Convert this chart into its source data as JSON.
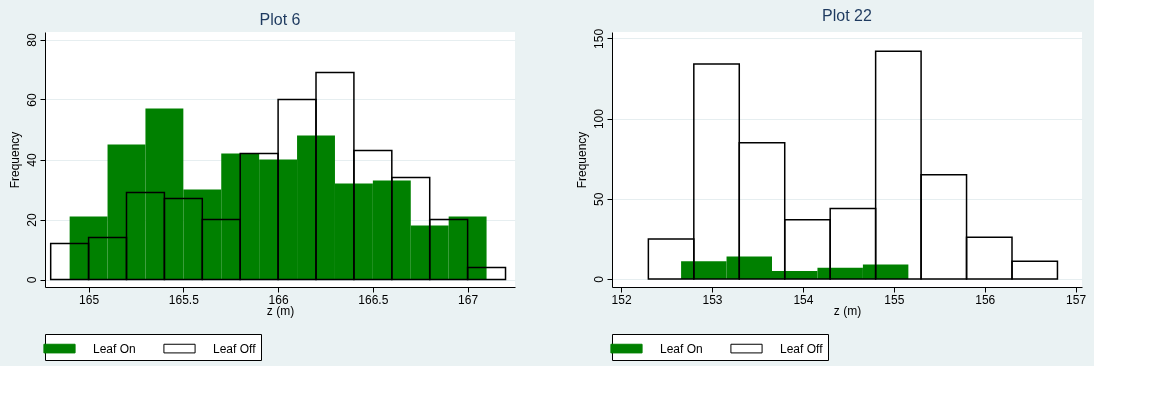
{
  "chart_data": [
    {
      "type": "bar",
      "title": "Plot 6",
      "xlabel": "z (m)",
      "ylabel": "Frequency",
      "xlim": [
        164.77,
        167.25
      ],
      "xticks": [
        165,
        165.5,
        166,
        166.5,
        167
      ],
      "ylim": [
        -2.5,
        82.5
      ],
      "yticks": [
        0,
        20,
        40,
        60,
        80
      ],
      "grid": "y",
      "legend": "bottom",
      "series": [
        {
          "name": "Leaf On",
          "color": "#008000",
          "x": [
            165.0,
            165.2,
            165.4,
            165.6,
            165.8,
            166.0,
            166.2,
            166.4,
            166.6,
            166.8,
            167.0
          ],
          "values": [
            21,
            45,
            57,
            30,
            42,
            40,
            48,
            32,
            33,
            18,
            21
          ]
        },
        {
          "name": "Leaf Off",
          "color": "#000000",
          "x": [
            164.9,
            165.1,
            165.3,
            165.5,
            165.7,
            165.9,
            166.1,
            166.3,
            166.5,
            166.7,
            166.9,
            167.1
          ],
          "values": [
            12,
            14,
            29,
            27,
            20,
            42,
            60,
            69,
            43,
            34,
            20,
            4
          ]
        }
      ]
    },
    {
      "type": "bar",
      "title": "Plot 22",
      "xlabel": "z (m)",
      "ylabel": "Frequency",
      "xlim": [
        151.9,
        157.07
      ],
      "xticks": [
        152,
        153,
        154,
        155,
        156,
        157
      ],
      "ylim": [
        -5,
        154
      ],
      "yticks": [
        0,
        50,
        100,
        150
      ],
      "grid": "y",
      "legend": "bottom",
      "series": [
        {
          "name": "Leaf On",
          "color": "#008000",
          "x": [
            152.91,
            153.41,
            153.91,
            154.41,
            154.91
          ],
          "values": [
            11,
            14,
            5,
            7,
            9
          ]
        },
        {
          "name": "Leaf Off",
          "color": "#000000",
          "x": [
            152.55,
            153.05,
            153.55,
            154.05,
            154.55,
            155.05,
            155.55,
            156.05,
            156.55
          ],
          "values": [
            25,
            134,
            85,
            37,
            44,
            142,
            65,
            26,
            11
          ]
        }
      ]
    }
  ]
}
